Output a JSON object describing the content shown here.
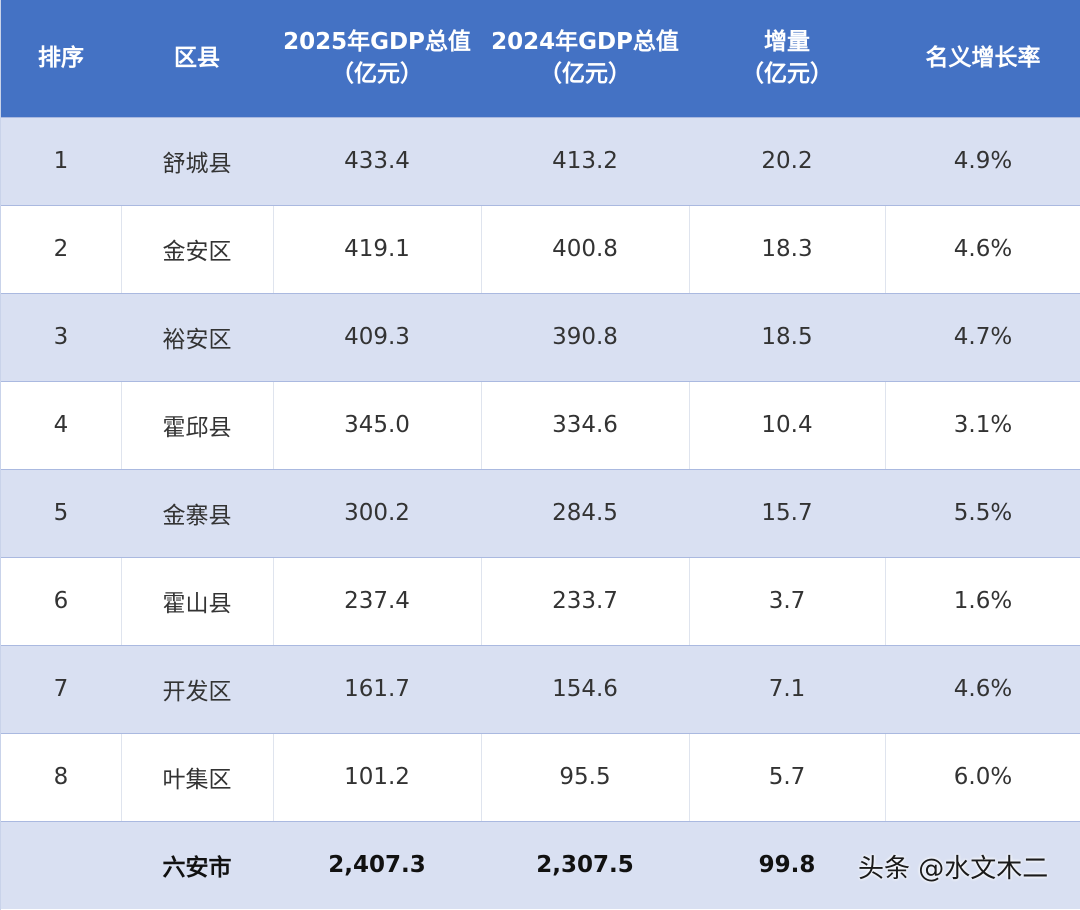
{
  "table": {
    "headers": {
      "rank": "排序",
      "district": "区县",
      "gdp2025_line1": "2025年GDP总值",
      "gdp2025_line2": "（亿元）",
      "gdp2024_line1": "2024年GDP总值",
      "gdp2024_line2": "（亿元）",
      "increase_line1": "增量",
      "increase_line2": "（亿元）",
      "growth": "名义增长率"
    },
    "rows": [
      {
        "rank": "1",
        "district": "舒城县",
        "gdp2025": "433.4",
        "gdp2024": "413.2",
        "increase": "20.2",
        "growth": "4.9%"
      },
      {
        "rank": "2",
        "district": "金安区",
        "gdp2025": "419.1",
        "gdp2024": "400.8",
        "increase": "18.3",
        "growth": "4.6%"
      },
      {
        "rank": "3",
        "district": "裕安区",
        "gdp2025": "409.3",
        "gdp2024": "390.8",
        "increase": "18.5",
        "growth": "4.7%"
      },
      {
        "rank": "4",
        "district": "霍邱县",
        "gdp2025": "345.0",
        "gdp2024": "334.6",
        "increase": "10.4",
        "growth": "3.1%"
      },
      {
        "rank": "5",
        "district": "金寨县",
        "gdp2025": "300.2",
        "gdp2024": "284.5",
        "increase": "15.7",
        "growth": "5.5%"
      },
      {
        "rank": "6",
        "district": "霍山县",
        "gdp2025": "237.4",
        "gdp2024": "233.7",
        "increase": "3.7",
        "growth": "1.6%"
      },
      {
        "rank": "7",
        "district": "开发区",
        "gdp2025": "161.7",
        "gdp2024": "154.6",
        "increase": "7.1",
        "growth": "4.6%"
      },
      {
        "rank": "8",
        "district": "叶集区",
        "gdp2025": "101.2",
        "gdp2024": "95.5",
        "increase": "5.7",
        "growth": "6.0%"
      }
    ],
    "total": {
      "rank": "",
      "district": "六安市",
      "gdp2025": "2,407.3",
      "gdp2024": "2,307.5",
      "increase": "99.8"
    }
  },
  "watermark": "头条 @水文木二",
  "colors": {
    "header": "#4472c4",
    "odd_row": "#d9e0f2",
    "even_row": "#ffffff"
  }
}
